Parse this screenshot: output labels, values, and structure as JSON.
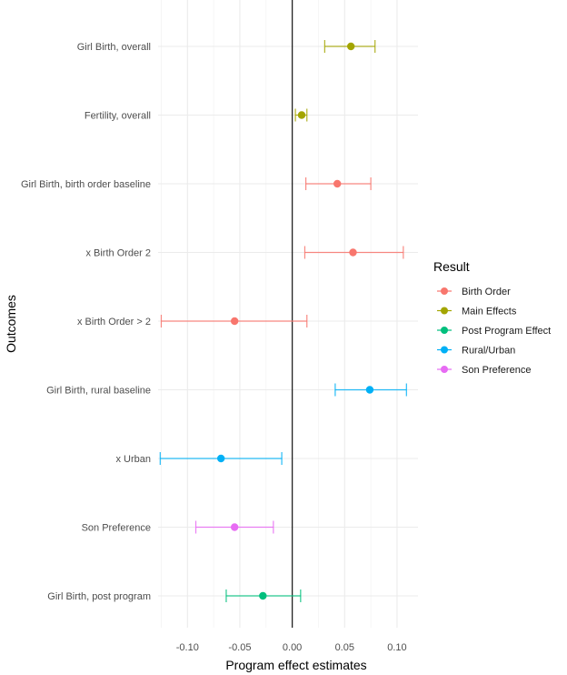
{
  "chart_data": {
    "type": "scatter",
    "subtype": "coefficient-plot-with-error-bars",
    "title": "",
    "xlabel": "Program effect estimates",
    "ylabel": "Outcomes",
    "xlim": [
      -0.128,
      0.12
    ],
    "xticks": [
      -0.1,
      -0.05,
      0.0,
      0.05,
      0.1
    ],
    "xtick_labels": [
      "-0.10",
      "-0.05",
      "0.00",
      "0.05",
      "0.10"
    ],
    "grid": true,
    "reference_line_x": 0,
    "categories": [
      "Girl Birth, overall",
      "Fertility, overall",
      "Girl Birth, birth order baseline",
      "x Birth Order 2",
      "x Birth Order > 2",
      "Girl Birth, rural baseline",
      "x Urban",
      "Son Preference",
      "Girl Birth, post program"
    ],
    "points": [
      {
        "outcome": "Girl Birth, overall",
        "group": "Main Effects",
        "estimate": 0.056,
        "lower": 0.031,
        "upper": 0.079
      },
      {
        "outcome": "Fertility, overall",
        "group": "Main Effects",
        "estimate": 0.009,
        "lower": 0.003,
        "upper": 0.014
      },
      {
        "outcome": "Girl Birth, birth order baseline",
        "group": "Birth Order",
        "estimate": 0.043,
        "lower": 0.013,
        "upper": 0.075
      },
      {
        "outcome": "x Birth Order 2",
        "group": "Birth Order",
        "estimate": 0.058,
        "lower": 0.012,
        "upper": 0.106
      },
      {
        "outcome": "x Birth Order > 2",
        "group": "Birth Order",
        "estimate": -0.055,
        "lower": -0.125,
        "upper": 0.014
      },
      {
        "outcome": "Girl Birth, rural baseline",
        "group": "Rural/Urban",
        "estimate": 0.074,
        "lower": 0.041,
        "upper": 0.109
      },
      {
        "outcome": "x Urban",
        "group": "Rural/Urban",
        "estimate": -0.068,
        "lower": -0.126,
        "upper": -0.01
      },
      {
        "outcome": "Son Preference",
        "group": "Son Preference",
        "estimate": -0.055,
        "lower": -0.092,
        "upper": -0.018
      },
      {
        "outcome": "Girl Birth, post program",
        "group": "Post Program Effect",
        "estimate": -0.028,
        "lower": -0.063,
        "upper": 0.008
      }
    ],
    "legend": {
      "title": "Result",
      "position": "right",
      "entries": [
        {
          "label": "Birth Order",
          "color": "#F8766D"
        },
        {
          "label": "Main Effects",
          "color": "#A3A500"
        },
        {
          "label": "Post Program Effect",
          "color": "#00BF7D"
        },
        {
          "label": "Rural/Urban",
          "color": "#00B0F6"
        },
        {
          "label": "Son Preference",
          "color": "#E76BF3"
        }
      ]
    }
  }
}
